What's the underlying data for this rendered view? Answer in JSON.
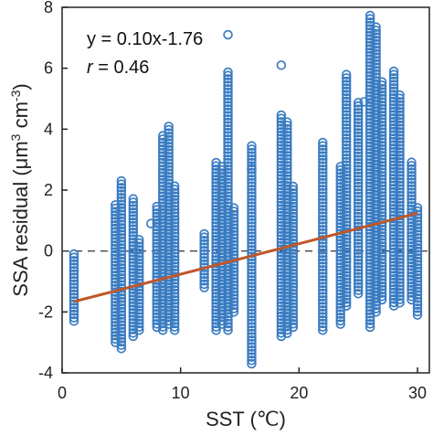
{
  "chart_data": {
    "type": "scatter",
    "xlabel": "SST (℃)",
    "ylabel_main": "SSA residual (μm",
    "ylabel_sup1": "3",
    "ylabel_mid": " cm",
    "ylabel_sup2": "-3",
    "ylabel_end": ")",
    "xlim": [
      0,
      31
    ],
    "ylim": [
      -4,
      8
    ],
    "xticks": [
      0,
      10,
      20,
      30
    ],
    "yticks": [
      -4,
      -2,
      0,
      2,
      4,
      6,
      8
    ],
    "grid": false,
    "reference_line_y": 0,
    "fit": {
      "slope": 0.1,
      "intercept": -1.76,
      "x_range": [
        1,
        30
      ],
      "color": "#c0572a"
    },
    "annotations": {
      "equation": "y = 0.10x-1.76",
      "r_label": "r",
      "r_value": " = 0.46"
    },
    "marker_color": "#3a7cc2",
    "columns": [
      {
        "x": 1.0,
        "ymin": -2.3,
        "ymax": 0.0
      },
      {
        "x": 4.5,
        "ymin": -3.0,
        "ymax": 1.6
      },
      {
        "x": 5.0,
        "ymin": -3.2,
        "ymax": 2.4
      },
      {
        "x": 6.0,
        "ymin": -2.8,
        "ymax": 1.8
      },
      {
        "x": 6.5,
        "ymin": -2.6,
        "ymax": 0.4
      },
      {
        "x": 8.0,
        "ymin": -2.5,
        "ymax": 1.5
      },
      {
        "x": 8.5,
        "ymin": -2.6,
        "ymax": 3.8
      },
      {
        "x": 9.0,
        "ymin": -2.4,
        "ymax": 4.1
      },
      {
        "x": 9.5,
        "ymin": -2.6,
        "ymax": 2.2
      },
      {
        "x": 12.0,
        "ymin": -1.2,
        "ymax": 0.6
      },
      {
        "x": 13.0,
        "ymin": -2.6,
        "ymax": 3.0
      },
      {
        "x": 13.5,
        "ymin": -2.4,
        "ymax": 2.8
      },
      {
        "x": 14.0,
        "ymin": -2.6,
        "ymax": 5.9
      },
      {
        "x": 14.5,
        "ymin": -2.0,
        "ymax": 1.5
      },
      {
        "x": 16.0,
        "ymin": -3.7,
        "ymax": 3.5
      },
      {
        "x": 18.5,
        "ymin": -2.8,
        "ymax": 4.5
      },
      {
        "x": 19.0,
        "ymin": -2.7,
        "ymax": 4.3
      },
      {
        "x": 19.5,
        "ymin": -2.5,
        "ymax": 2.2
      },
      {
        "x": 22.0,
        "ymin": -2.6,
        "ymax": 3.6
      },
      {
        "x": 23.5,
        "ymin": -2.4,
        "ymax": 2.8
      },
      {
        "x": 24.0,
        "ymin": -1.8,
        "ymax": 5.8
      },
      {
        "x": 25.0,
        "ymin": -1.4,
        "ymax": 4.9
      },
      {
        "x": 26.0,
        "ymin": -2.5,
        "ymax": 7.8
      },
      {
        "x": 26.5,
        "ymin": -2.0,
        "ymax": 7.4
      },
      {
        "x": 27.0,
        "ymin": -1.6,
        "ymax": 5.6
      },
      {
        "x": 28.0,
        "ymin": -1.8,
        "ymax": 5.9
      },
      {
        "x": 28.5,
        "ymin": -1.7,
        "ymax": 5.2
      },
      {
        "x": 29.5,
        "ymin": -1.6,
        "ymax": 3.0
      },
      {
        "x": 30.0,
        "ymin": -2.1,
        "ymax": 1.5
      }
    ],
    "outliers": [
      {
        "x": 14.0,
        "y": 7.1
      },
      {
        "x": 18.5,
        "y": 6.1
      },
      {
        "x": 7.5,
        "y": 0.9
      },
      {
        "x": 16.0,
        "y": 2.7
      },
      {
        "x": 25.5,
        "y": 4.9
      }
    ]
  }
}
